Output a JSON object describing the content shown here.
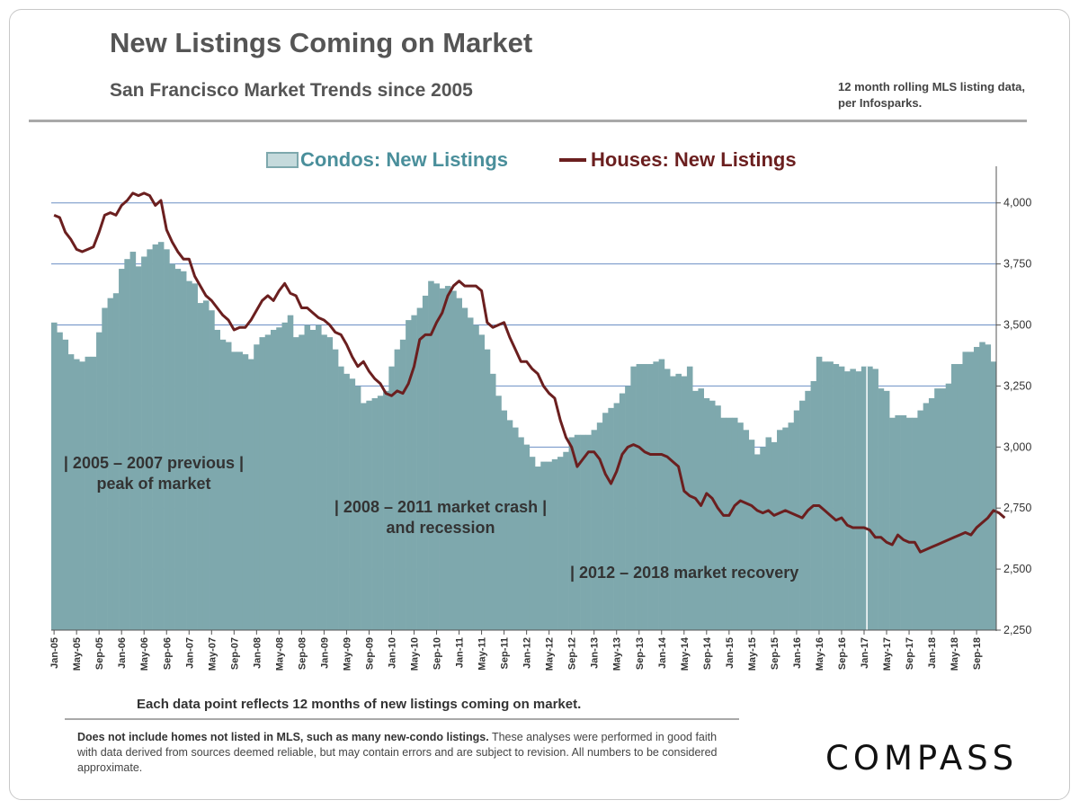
{
  "title": "New Listings Coming on Market",
  "subtitle": "San Francisco Market Trends since 2005",
  "note": "12 month rolling MLS listing data, per Infosparks.",
  "caption": "Each data point reflects 12 months of new listings coming on market.",
  "disclaimer_bold": "Does not include homes not listed in MLS, such as many new-condo listings.",
  "disclaimer_rest": " These analyses were performed in good faith with data derived from sources deemed reliable, but may contain errors and are subject to revision. All numbers to be considered  approximate.",
  "logo": "COMPASS",
  "colors": {
    "condos": "#7ea8ad",
    "houses": "#6b1f1f",
    "grid": "#6b8fc4",
    "legend_condo_text": "#4a8f9b"
  },
  "chart_data": {
    "type": "bar",
    "yaxis_side": "right",
    "ylim": [
      2250,
      4150
    ],
    "yticks": [
      "2,250",
      "2,500",
      "2,750",
      "3,000",
      "3,250",
      "3,500",
      "3,750",
      "4,000"
    ],
    "ytick_values": [
      2250,
      2500,
      2750,
      3000,
      3250,
      3500,
      3750,
      4000
    ],
    "grid": "horizontal",
    "xtick_labels": [
      "Jan-05",
      "May-05",
      "Sep-05",
      "Jan-06",
      "May-06",
      "Sep-06",
      "Jan-07",
      "May-07",
      "Sep-07",
      "Jan-08",
      "May-08",
      "Sep-08",
      "Jan-09",
      "May-09",
      "Sep-09",
      "Jan-10",
      "May-10",
      "Sep-10",
      "Jan-11",
      "May-11",
      "Sep-11",
      "Jan-12",
      "May-12",
      "Sep-12",
      "Jan-13",
      "May-13",
      "Sep-13",
      "Jan-14",
      "May-14",
      "Sep-14",
      "Jan-15",
      "May-15",
      "Sep-15",
      "Jan-16",
      "May-16",
      "Sep-16",
      "Jan-17",
      "May-17",
      "Sep-17",
      "Jan-18",
      "May-18",
      "Sep-18"
    ],
    "legend": {
      "condos": "Condos: New Listings",
      "houses": "Houses: New Listings",
      "position": "top"
    },
    "annotations": [
      {
        "lines": [
          "| 2005 – 2007 previous |",
          "peak of market"
        ]
      },
      {
        "lines": [
          "| 2008 – 2011 market crash |",
          "and recession"
        ]
      },
      {
        "lines": [
          "| 2012 – 2018 market recovery"
        ]
      }
    ],
    "series": [
      {
        "name": "Condos: New Listings",
        "kind": "bar",
        "values": [
          3510,
          3470,
          3440,
          3380,
          3360,
          3350,
          3370,
          3370,
          3470,
          3570,
          3610,
          3630,
          3730,
          3770,
          3800,
          3740,
          3780,
          3810,
          3830,
          3840,
          3810,
          3750,
          3730,
          3720,
          3680,
          3670,
          3590,
          3600,
          3560,
          3480,
          3440,
          3430,
          3390,
          3390,
          3380,
          3360,
          3420,
          3450,
          3460,
          3480,
          3490,
          3510,
          3540,
          3450,
          3460,
          3500,
          3480,
          3500,
          3460,
          3450,
          3400,
          3330,
          3300,
          3280,
          3250,
          3180,
          3190,
          3200,
          3210,
          3230,
          3330,
          3400,
          3440,
          3520,
          3540,
          3570,
          3620,
          3680,
          3670,
          3650,
          3660,
          3640,
          3610,
          3570,
          3530,
          3500,
          3460,
          3400,
          3300,
          3210,
          3150,
          3110,
          3080,
          3040,
          3010,
          2960,
          2920,
          2940,
          2940,
          2950,
          2960,
          2980,
          3040,
          3050,
          3050,
          3050,
          3070,
          3100,
          3140,
          3160,
          3180,
          3220,
          3250,
          3330,
          3340,
          3340,
          3340,
          3350,
          3360,
          3320,
          3290,
          3300,
          3290,
          3330,
          3230,
          3240,
          3200,
          3190,
          3170,
          3120,
          3120,
          3120,
          3100,
          3070,
          3030,
          2970,
          3000,
          3040,
          3020,
          3070,
          3080,
          3100,
          3150,
          3190,
          3230,
          3270,
          3370,
          3350,
          3350,
          3340,
          3330,
          3310,
          3320,
          3310,
          3330,
          3330,
          3320,
          3240,
          3230,
          3120,
          3130,
          3130,
          3120,
          3120,
          3150,
          3180,
          3200,
          3240,
          3240,
          3260,
          3340,
          3340,
          3390,
          3390,
          3410,
          3430,
          3420,
          3350
        ]
      },
      {
        "name": "Houses: New Listings",
        "kind": "line",
        "values": [
          3950,
          3940,
          3880,
          3850,
          3810,
          3800,
          3810,
          3820,
          3880,
          3950,
          3960,
          3950,
          3990,
          4010,
          4040,
          4030,
          4040,
          4030,
          3990,
          4010,
          3890,
          3840,
          3800,
          3770,
          3770,
          3700,
          3660,
          3620,
          3600,
          3570,
          3540,
          3520,
          3480,
          3490,
          3490,
          3520,
          3560,
          3600,
          3620,
          3600,
          3640,
          3670,
          3630,
          3620,
          3570,
          3570,
          3550,
          3530,
          3520,
          3500,
          3470,
          3460,
          3420,
          3370,
          3330,
          3350,
          3310,
          3280,
          3260,
          3220,
          3210,
          3230,
          3220,
          3260,
          3330,
          3440,
          3460,
          3460,
          3510,
          3550,
          3620,
          3660,
          3680,
          3660,
          3660,
          3660,
          3640,
          3510,
          3490,
          3500,
          3510,
          3450,
          3400,
          3350,
          3350,
          3320,
          3300,
          3250,
          3220,
          3200,
          3110,
          3040,
          3000,
          2920,
          2950,
          2980,
          2980,
          2950,
          2890,
          2850,
          2900,
          2970,
          3000,
          3010,
          3000,
          2980,
          2970,
          2970,
          2970,
          2960,
          2940,
          2920,
          2820,
          2800,
          2790,
          2760,
          2810,
          2790,
          2750,
          2720,
          2720,
          2760,
          2780,
          2770,
          2760,
          2740,
          2730,
          2740,
          2720,
          2730,
          2740,
          2730,
          2720,
          2710,
          2740,
          2760,
          2760,
          2740,
          2720,
          2700,
          2710,
          2680,
          2670,
          2670,
          2670,
          2660,
          2630,
          2630,
          2610,
          2600,
          2640,
          2620,
          2610,
          2610,
          2570,
          2580,
          2590,
          2600,
          2610,
          2620,
          2630,
          2640,
          2650,
          2640,
          2670,
          2690,
          2710,
          2740,
          2730,
          2710
        ]
      }
    ]
  }
}
